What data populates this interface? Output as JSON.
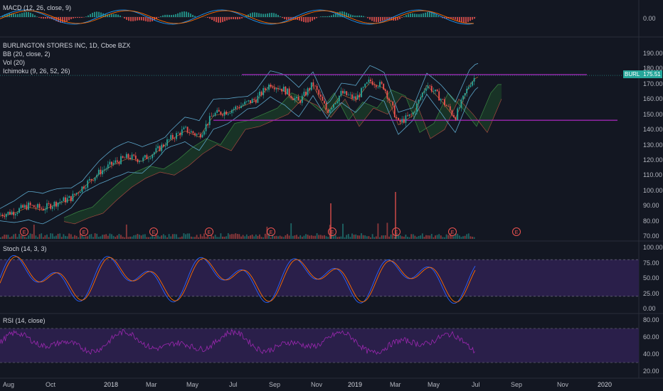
{
  "panes": {
    "macd_title": "MACD (12, 26, close, 9)",
    "main_title": "BURLINGTON STORES INC, 1D, Cboe BZX",
    "bb_title": "BB (20, close, 2)",
    "vol_title": "Vol (20)",
    "ichimoku_title": "Ichimoku (9, 26, 52, 26)",
    "stoch_title": "Stoch (14, 3, 3)",
    "rsi_title": "RSI (14, close)"
  },
  "price_tag": {
    "symbol": "BURL",
    "value": "175.51"
  },
  "earnings_marker": "E",
  "colors": {
    "bg": "#131722",
    "up": "#26a69a",
    "down": "#ef5350",
    "purple": "#9c27b0",
    "band": "#2a1f4a",
    "bb": "#5ba5c9",
    "cloud_up": "#1e4a2a",
    "cloud_dn": "#4a1e1e"
  },
  "chart_data": [
    {
      "type": "bar",
      "title": "MACD (12, 26, close, 9)",
      "y_ticks": [
        "0.00"
      ],
      "ylim": [
        -6,
        6
      ]
    },
    {
      "type": "candlestick",
      "title": "BURLINGTON STORES INC, 1D, Cboe BZX",
      "x_ticks": [
        "Aug",
        "Oct",
        "2018",
        "Mar",
        "May",
        "Jul",
        "Sep",
        "Nov",
        "2019",
        "Mar",
        "May",
        "Jul",
        "Sep",
        "Nov",
        "2020"
      ],
      "y_ticks": [
        "190.00",
        "180.00",
        "170.00",
        "160.00",
        "150.00",
        "140.00",
        "130.00",
        "120.00",
        "110.00",
        "100.00",
        "90.00",
        "80.00",
        "70.00"
      ],
      "ylim": [
        70,
        190
      ],
      "last_close": 175.51,
      "horizontal_lines": [
        176,
        146
      ],
      "close_path": [
        [
          0,
          84
        ],
        [
          20,
          86
        ],
        [
          40,
          90
        ],
        [
          60,
          88
        ],
        [
          80,
          92
        ],
        [
          100,
          95
        ],
        [
          120,
          104
        ],
        [
          140,
          112
        ],
        [
          160,
          118
        ],
        [
          180,
          122
        ],
        [
          200,
          120
        ],
        [
          220,
          126
        ],
        [
          240,
          134
        ],
        [
          260,
          140
        ],
        [
          280,
          136
        ],
        [
          300,
          150
        ],
        [
          320,
          152
        ],
        [
          340,
          156
        ],
        [
          360,
          160
        ],
        [
          380,
          170
        ],
        [
          400,
          166
        ],
        [
          420,
          158
        ],
        [
          440,
          170
        ],
        [
          460,
          152
        ],
        [
          480,
          164
        ],
        [
          500,
          160
        ],
        [
          520,
          172
        ],
        [
          540,
          168
        ],
        [
          560,
          144
        ],
        [
          580,
          150
        ],
        [
          600,
          170
        ],
        [
          620,
          160
        ],
        [
          640,
          148
        ],
        [
          660,
          170
        ],
        [
          670,
          175.51
        ]
      ]
    },
    {
      "type": "line",
      "title": "Stoch (14, 3, 3)",
      "y_ticks": [
        "100.00",
        "75.00",
        "50.00",
        "25.00",
        "0.00"
      ],
      "ylim": [
        0,
        100
      ],
      "bands": [
        80,
        20
      ]
    },
    {
      "type": "line",
      "title": "RSI (14, close)",
      "y_ticks": [
        "80.00",
        "60.00",
        "40.00",
        "20.00"
      ],
      "ylim": [
        20,
        80
      ],
      "bands": [
        70,
        30
      ]
    }
  ]
}
